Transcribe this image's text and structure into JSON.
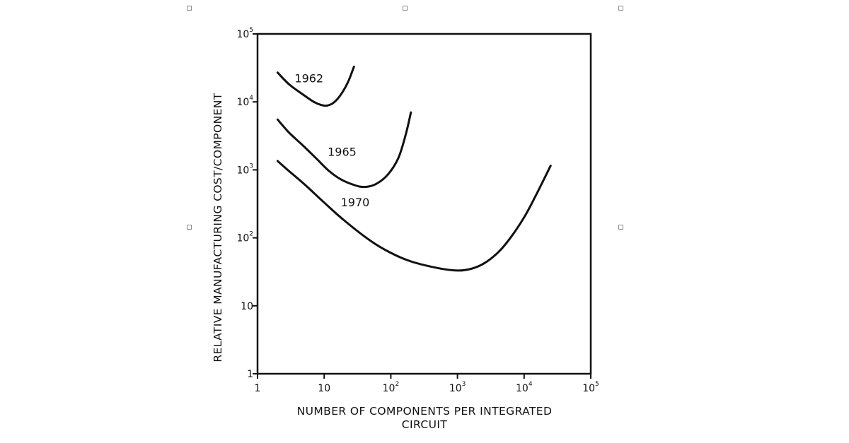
{
  "chart_data": {
    "type": "line",
    "xlabel_line1": "NUMBER OF COMPONENTS PER INTEGRATED",
    "xlabel_line2": "CIRCUIT",
    "ylabel": "RELATIVE MANUFACTURING COST/COMPONENT",
    "x_scale": "log",
    "y_scale": "log",
    "xlim": [
      1,
      100000
    ],
    "ylim": [
      1,
      100000
    ],
    "grid": false,
    "x_ticks": [
      {
        "value": 1,
        "base": "1",
        "exp": ""
      },
      {
        "value": 10,
        "base": "10",
        "exp": ""
      },
      {
        "value": 100,
        "base": "10",
        "exp": "2"
      },
      {
        "value": 1000,
        "base": "10",
        "exp": "3"
      },
      {
        "value": 10000,
        "base": "10",
        "exp": "4"
      },
      {
        "value": 100000,
        "base": "10",
        "exp": "5"
      }
    ],
    "y_ticks": [
      {
        "value": 1,
        "base": "1",
        "exp": ""
      },
      {
        "value": 10,
        "base": "10",
        "exp": ""
      },
      {
        "value": 100,
        "base": "10",
        "exp": "2"
      },
      {
        "value": 1000,
        "base": "10",
        "exp": "3"
      },
      {
        "value": 10000,
        "base": "10",
        "exp": "4"
      },
      {
        "value": 100000,
        "base": "10",
        "exp": "5"
      }
    ],
    "series": [
      {
        "name": "1962",
        "x": [
          2,
          3,
          5,
          7,
          9,
          11,
          14,
          18,
          23,
          28
        ],
        "y": [
          27000,
          18000,
          12500,
          10000,
          9000,
          8800,
          9800,
          13000,
          20000,
          33000
        ]
      },
      {
        "name": "1965",
        "x": [
          2,
          3,
          5,
          8,
          12,
          18,
          28,
          40,
          60,
          90,
          130,
          170,
          200
        ],
        "y": [
          5500,
          3500,
          2200,
          1400,
          950,
          720,
          600,
          560,
          620,
          850,
          1500,
          3500,
          7000
        ]
      },
      {
        "name": "1970",
        "x": [
          2,
          3,
          5,
          10,
          20,
          50,
          100,
          200,
          500,
          1000,
          1600,
          2500,
          4000,
          6000,
          10000,
          15000,
          25000
        ],
        "y": [
          1350,
          950,
          620,
          330,
          180,
          90,
          60,
          45,
          36,
          33,
          35,
          42,
          60,
          95,
          200,
          420,
          1150
        ]
      }
    ]
  }
}
